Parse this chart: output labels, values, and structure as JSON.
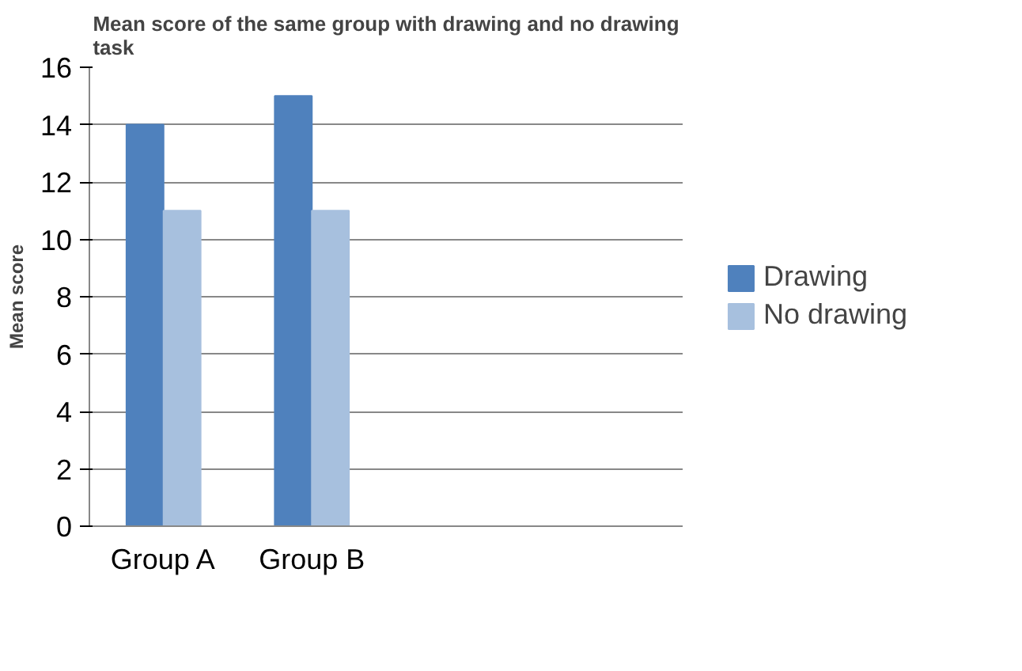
{
  "chart_data": {
    "type": "bar",
    "title": "Mean score of the same group with drawing and no drawing\ntask",
    "ylabel": "Mean score",
    "categories": [
      "Group A",
      "Group B",
      null,
      null
    ],
    "series": [
      {
        "name": "Drawing",
        "color": "#4f81bd",
        "values": [
          14,
          15,
          null,
          null
        ]
      },
      {
        "name": "No drawing",
        "color": "#a7c0de",
        "values": [
          11,
          11,
          null,
          null
        ]
      }
    ],
    "ylim": [
      0,
      16
    ],
    "yticks": [
      0,
      2,
      4,
      6,
      8,
      10,
      12,
      14,
      16
    ],
    "grid": "y",
    "legend": "right"
  }
}
